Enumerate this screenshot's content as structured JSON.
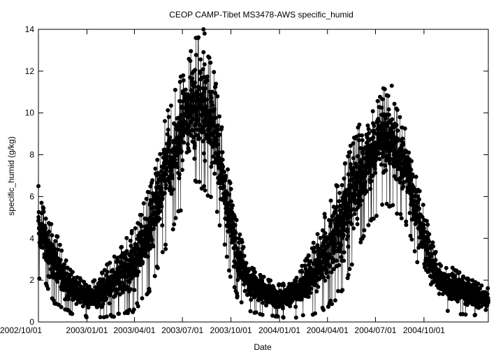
{
  "chart_data": {
    "type": "scatter",
    "title": "CEOP CAMP-Tibet MS3478-AWS  specific_humid",
    "xlabel": "Date",
    "ylabel": "specific_humid (g/kg)",
    "xlim": [
      "2002-10-01",
      "2005-01-31"
    ],
    "ylim": [
      0,
      14
    ],
    "x_ticks": [
      "2002/10/01",
      "2003/01/01",
      "2003/04/01",
      "2003/07/01",
      "2003/10/01",
      "2004/01/01",
      "2004/04/01",
      "2004/07/01",
      "2004/10/01"
    ],
    "y_ticks": [
      0,
      2,
      4,
      6,
      8,
      10,
      12,
      14
    ],
    "grid": false,
    "legend": "none",
    "colors": {
      "points": "#000000",
      "line": "#000000",
      "axes": "#000000",
      "background": "#ffffff"
    },
    "series": [
      {
        "marker": "filled-circle",
        "connected": true,
        "envelope": {
          "x": [
            "2002-10-01",
            "2002-10-15",
            "2002-11-01",
            "2002-11-15",
            "2002-12-01",
            "2002-12-15",
            "2003-01-01",
            "2003-01-15",
            "2003-02-01",
            "2003-02-15",
            "2003-03-01",
            "2003-03-15",
            "2003-04-01",
            "2003-04-15",
            "2003-05-01",
            "2003-05-15",
            "2003-06-01",
            "2003-06-15",
            "2003-07-01",
            "2003-07-15",
            "2003-08-01",
            "2003-08-15",
            "2003-09-01",
            "2003-09-15",
            "2003-10-01",
            "2003-10-15",
            "2003-11-01",
            "2003-11-15",
            "2003-12-01",
            "2003-12-15",
            "2004-01-01",
            "2004-01-15",
            "2004-02-01",
            "2004-02-15",
            "2004-03-01",
            "2004-03-15",
            "2004-04-01",
            "2004-04-15",
            "2004-05-01",
            "2004-05-15",
            "2004-06-01",
            "2004-06-15",
            "2004-07-01",
            "2004-07-15",
            "2004-08-01",
            "2004-08-15",
            "2004-09-01",
            "2004-09-15",
            "2004-10-01",
            "2004-10-15",
            "2004-11-01",
            "2004-11-15",
            "2004-12-01",
            "2004-12-15",
            "2005-01-01",
            "2005-01-15",
            "2005-01-31"
          ],
          "low": [
            2.0,
            1.8,
            0.8,
            0.6,
            0.4,
            0.3,
            0.2,
            0.2,
            0.2,
            0.2,
            0.3,
            0.3,
            0.5,
            1.0,
            1.5,
            2.5,
            3.5,
            4.5,
            5.5,
            6.5,
            6.5,
            6.0,
            5.5,
            4.0,
            2.0,
            1.0,
            0.6,
            0.4,
            0.3,
            0.3,
            0.2,
            0.2,
            0.2,
            0.3,
            0.3,
            0.4,
            0.6,
            1.0,
            1.5,
            2.5,
            3.5,
            4.5,
            5.0,
            5.5,
            5.5,
            5.0,
            4.5,
            3.0,
            1.5,
            1.0,
            0.7,
            0.5,
            0.4,
            0.3,
            0.3,
            0.3,
            0.3
          ],
          "high": [
            6.5,
            5.0,
            4.5,
            3.5,
            2.5,
            2.2,
            1.8,
            2.0,
            2.5,
            3.0,
            3.5,
            4.0,
            4.5,
            5.5,
            6.5,
            8.0,
            10.0,
            11.0,
            12.0,
            13.0,
            14.0,
            13.0,
            12.0,
            9.0,
            6.5,
            4.5,
            3.0,
            2.5,
            2.2,
            2.0,
            1.8,
            2.0,
            2.2,
            2.8,
            3.5,
            4.5,
            5.5,
            6.5,
            7.5,
            8.5,
            9.5,
            10.0,
            10.5,
            11.3,
            10.8,
            10.0,
            9.0,
            7.5,
            5.5,
            4.0,
            3.0,
            2.8,
            2.5,
            2.2,
            2.0,
            1.8,
            1.6
          ]
        },
        "outliers": [
          {
            "x": "2003-08-10",
            "y": 14.0
          },
          {
            "x": "2003-08-12",
            "y": 13.8
          },
          {
            "x": "2004-08-01",
            "y": 11.3
          },
          {
            "x": "2004-04-20",
            "y": 6.5
          },
          {
            "x": "2002-10-01",
            "y": 6.5
          }
        ]
      }
    ]
  }
}
